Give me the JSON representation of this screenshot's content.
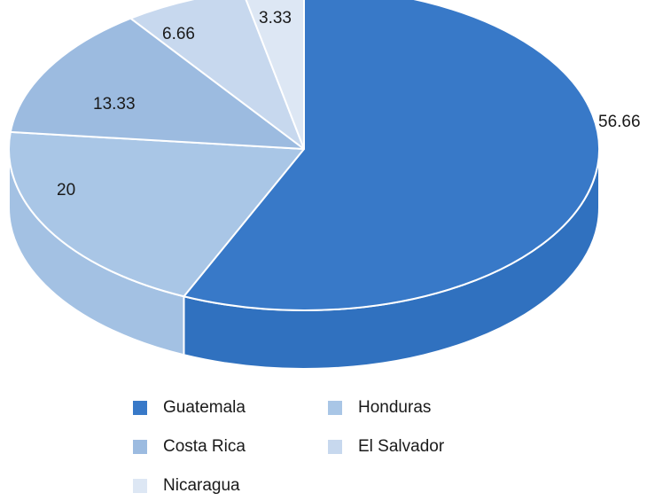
{
  "chart_data": {
    "type": "pie",
    "style": "3d",
    "categories": [
      "Guatemala",
      "Honduras",
      "Costa Rica",
      "El Salvador",
      "Nicaragua"
    ],
    "values": [
      56.66,
      20,
      13.33,
      6.66,
      3.33
    ],
    "data_labels": [
      "56.66",
      "20",
      "13.33",
      "6.66",
      "3.33"
    ],
    "colors": [
      "#3879C8",
      "#A9C6E6",
      "#9CBBE0",
      "#C7D8EE",
      "#DDE7F4"
    ],
    "side_colors": [
      "#3071BF",
      "#A3C1E3",
      "#96B6DC",
      "#BDD0EA",
      "#D4E1F1"
    ],
    "legend_position": "bottom",
    "legend": {
      "items": [
        {
          "label": "Guatemala",
          "color": "#3879C8"
        },
        {
          "label": "Honduras",
          "color": "#A9C6E6"
        },
        {
          "label": "Costa Rica",
          "color": "#9CBBE0"
        },
        {
          "label": "El Salvador",
          "color": "#C7D8EE"
        },
        {
          "label": "Nicaragua",
          "color": "#DDE7F4"
        }
      ]
    }
  }
}
